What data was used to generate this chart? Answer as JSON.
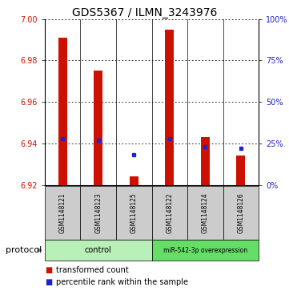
{
  "title": "GDS5367 / ILMN_3243976",
  "samples": [
    "GSM1148121",
    "GSM1148123",
    "GSM1148125",
    "GSM1148122",
    "GSM1148124",
    "GSM1148126"
  ],
  "bar_tops": [
    6.991,
    6.975,
    6.924,
    6.995,
    6.943,
    6.934
  ],
  "bar_bottom": 6.92,
  "percentile_pct": [
    28,
    27,
    18,
    28,
    23,
    22
  ],
  "ylim": [
    6.92,
    7.0
  ],
  "yticks_left": [
    6.92,
    6.94,
    6.96,
    6.98,
    7.0
  ],
  "yticks_right_pct": [
    0,
    25,
    50,
    75,
    100
  ],
  "control_label": "control",
  "mirna_label": "miR-542-3p overexpression",
  "bar_color": "#cc1100",
  "blue_color": "#2222cc",
  "control_bg": "#b8f0b8",
  "mirna_bg": "#66dd66",
  "sample_bg": "#cccccc",
  "legend_red": "transformed count",
  "legend_blue": "percentile rank within the sample",
  "protocol_label": "protocol",
  "title_fontsize": 10,
  "tick_fontsize": 7,
  "sample_fontsize": 5.5,
  "legend_fontsize": 7,
  "protocol_fontsize": 8
}
